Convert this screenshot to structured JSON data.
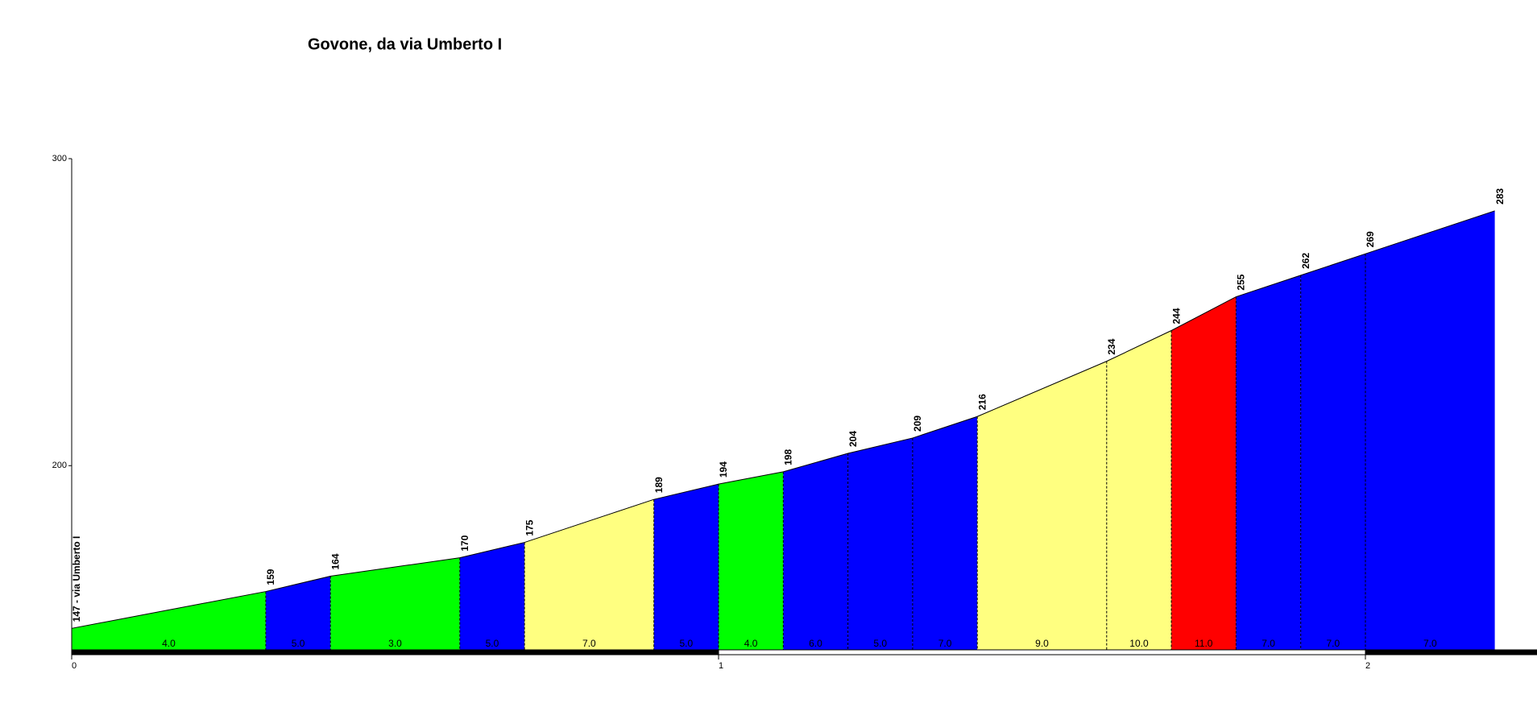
{
  "chart_data": {
    "type": "climb-profile",
    "title": "Govone, da via Umberto I",
    "x": [
      0,
      0.3,
      0.4,
      0.6,
      0.7,
      0.9,
      1.0,
      1.1,
      1.2,
      1.3,
      1.4,
      1.6,
      1.7,
      1.8,
      1.9,
      2.0,
      2.2
    ],
    "values": [
      147,
      159,
      164,
      170,
      175,
      189,
      194,
      198,
      204,
      209,
      216,
      234,
      244,
      255,
      262,
      269,
      283
    ],
    "value_labels": [
      "147 - via Umberto I",
      "159",
      "164",
      "170",
      "175",
      "189",
      "194",
      "198",
      "204",
      "209",
      "216",
      "234",
      "244",
      "255",
      "262",
      "269",
      "283"
    ],
    "segments": {
      "values": [
        4,
        5,
        3,
        5,
        7,
        5,
        4,
        6,
        5,
        7,
        9,
        10,
        11,
        7,
        7,
        7
      ],
      "value_labels": [
        "4.0",
        "5.0",
        "3.0",
        "5.0",
        "7.0",
        "5.0",
        "4.0",
        "6.0",
        "5.0",
        "7.0",
        "9.0",
        "10.0",
        "11.0",
        "7.0",
        "7.0",
        "7.0"
      ],
      "colors": [
        "#00ff00",
        "#0000ff",
        "#00ff00",
        "#0000ff",
        "#ffff80",
        "#0000ff",
        "#00ff00",
        "#0000ff",
        "#0000ff",
        "#0000ff",
        "#ffff80",
        "#ffff80",
        "#ff0000",
        "#0000ff",
        "#0000ff",
        "#0000ff"
      ]
    },
    "xlim": [
      0,
      2.27
    ],
    "xticks": [
      0,
      1,
      2
    ],
    "ylim": [
      140,
      300
    ],
    "yticks": [
      200,
      300
    ]
  }
}
